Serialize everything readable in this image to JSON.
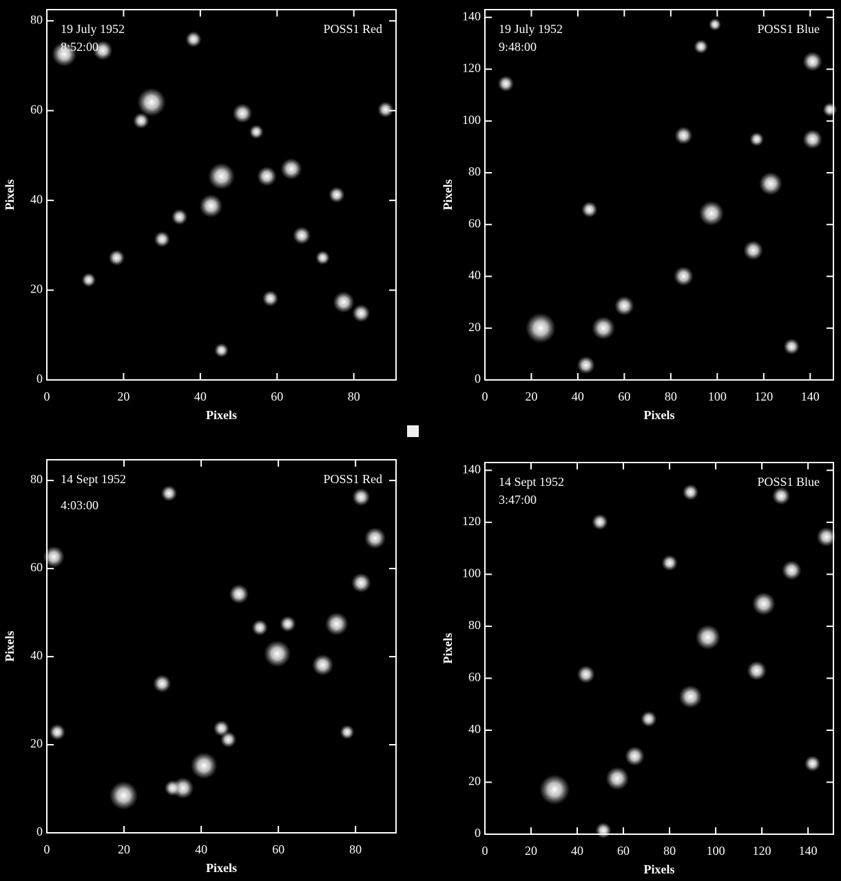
{
  "chart_data": [
    {
      "type": "image",
      "date": "19 July 1952",
      "time": "8:52:00",
      "plate": "POSS1 Red",
      "xlabel": "Pixels",
      "ylabel": "Pixels",
      "xlim": [
        0,
        91
      ],
      "ylim": [
        0,
        82.5
      ],
      "xticks": [
        0,
        20,
        40,
        60,
        80
      ],
      "yticks": [
        0,
        20,
        40,
        60,
        80
      ]
    },
    {
      "type": "image",
      "date": "19 July 1952",
      "time": "9:48:00",
      "plate": "POSS1 Blue",
      "xlabel": "Pixels",
      "ylabel": "Pixels",
      "xlim": [
        0,
        150
      ],
      "ylim": [
        0,
        143
      ],
      "xticks": [
        0,
        20,
        40,
        60,
        80,
        100,
        120,
        140
      ],
      "yticks": [
        0,
        20,
        40,
        60,
        80,
        100,
        120,
        140
      ]
    },
    {
      "type": "image",
      "date": "14 Sept 1952",
      "time": "4:03:00",
      "plate": "POSS1 Red",
      "xlabel": "Pixels",
      "ylabel": "Pixels",
      "xlim": [
        0,
        90.5
      ],
      "ylim": [
        0,
        84.7
      ],
      "xticks": [
        0,
        20,
        40,
        60,
        80
      ],
      "yticks": [
        0,
        20,
        40,
        60,
        80
      ]
    },
    {
      "type": "image",
      "date": "14 Sept 1952",
      "time": "3:47:00",
      "plate": "POSS1 Blue",
      "xlabel": "Pixels",
      "ylabel": "Pixels",
      "xlim": [
        0,
        151
      ],
      "ylim": [
        0,
        143
      ],
      "xticks": [
        0,
        20,
        40,
        60,
        80,
        100,
        120,
        140
      ],
      "yticks": [
        0,
        20,
        40,
        60,
        80,
        100,
        120,
        140
      ]
    }
  ]
}
